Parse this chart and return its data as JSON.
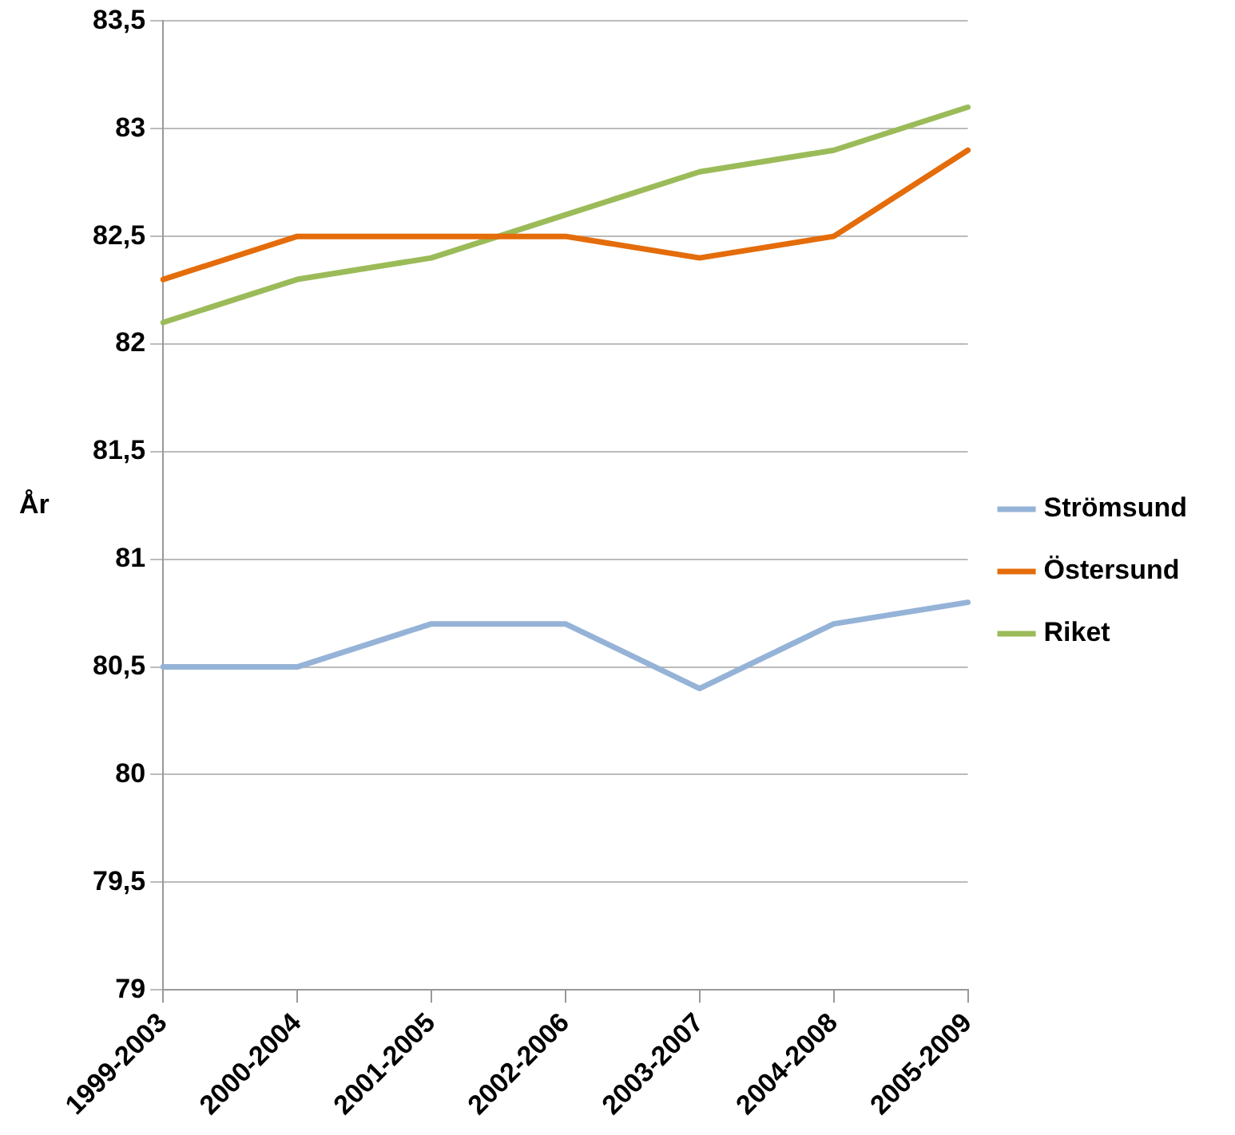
{
  "chart_data": {
    "type": "line",
    "ylabel": "År",
    "categories": [
      "1999-2003",
      "2000-2004",
      "2001-2005",
      "2002-2006",
      "2003-2007",
      "2004-2008",
      "2005-2009"
    ],
    "series": [
      {
        "name": "Strömsund",
        "color": "#95b3d7",
        "values": [
          80.5,
          80.5,
          80.7,
          80.7,
          80.4,
          80.7,
          80.8
        ]
      },
      {
        "name": "Östersund",
        "color": "#e46c0a",
        "values": [
          82.3,
          82.5,
          82.5,
          82.5,
          82.4,
          82.5,
          82.9
        ]
      },
      {
        "name": "Riket",
        "color": "#9bbb59",
        "values": [
          82.1,
          82.3,
          82.4,
          82.6,
          82.8,
          82.9,
          83.1
        ]
      }
    ],
    "ylim": [
      79,
      83.5
    ],
    "yticks": [
      {
        "value": 79,
        "label": "79"
      },
      {
        "value": 79.5,
        "label": "79,5"
      },
      {
        "value": 80,
        "label": "80"
      },
      {
        "value": 80.5,
        "label": "80,5"
      },
      {
        "value": 81,
        "label": "81"
      },
      {
        "value": 81.5,
        "label": "81,5"
      },
      {
        "value": 82,
        "label": "82"
      },
      {
        "value": 82.5,
        "label": "82,5"
      },
      {
        "value": 83,
        "label": "83"
      },
      {
        "value": 83.5,
        "label": "83,5"
      }
    ],
    "grid": "y",
    "legend": "right",
    "marker": "none",
    "line_style": "solid"
  }
}
